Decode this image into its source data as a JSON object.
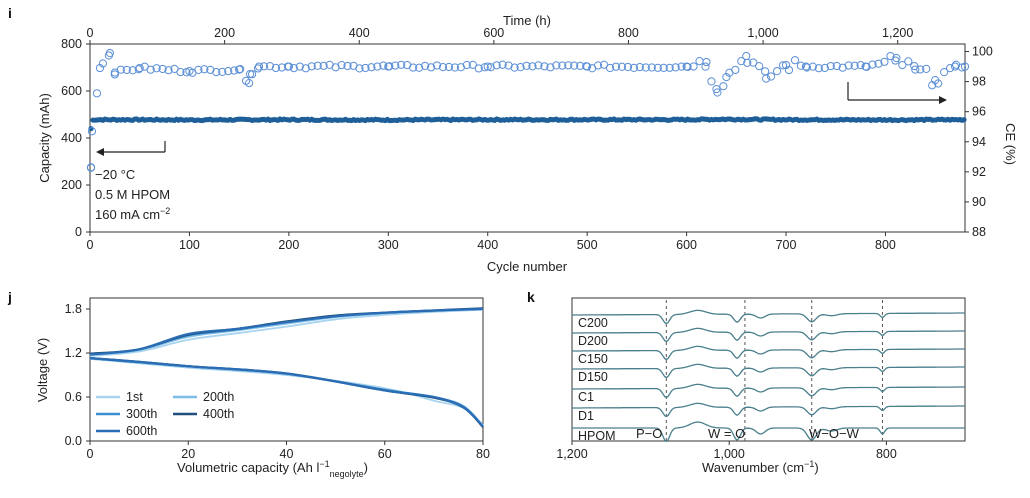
{
  "chart_data": [
    {
      "panel": "i",
      "type": "scatter",
      "x_top": {
        "label": "Time (h)",
        "ticks": [
          0,
          200,
          400,
          600,
          800,
          "1,000",
          "1,200"
        ],
        "range": [
          0,
          1300
        ]
      },
      "x_bottom": {
        "label": "Cycle number",
        "ticks": [
          0,
          100,
          200,
          300,
          400,
          500,
          600,
          700,
          800
        ],
        "range": [
          0,
          880
        ]
      },
      "y_left": {
        "label": "Capacity (mAh)",
        "ticks": [
          0,
          200,
          400,
          600,
          800
        ],
        "range": [
          0,
          800
        ]
      },
      "y_right": {
        "label": "CE (%)",
        "ticks": [
          88,
          90,
          92,
          94,
          96,
          98,
          100
        ],
        "range": [
          88,
          100.5
        ]
      },
      "annotations": [
        "−20 °C",
        "0.5 M HPOM",
        "160 mA cm−2"
      ],
      "series": [
        {
          "name": "Capacity",
          "axis": "left",
          "color": "#1f5f99",
          "marker": "filled",
          "points": [
            [
              1,
              440
            ],
            [
              2,
              475
            ],
            [
              5,
              478
            ],
            [
              50,
              478
            ],
            [
              100,
              477
            ],
            [
              200,
              478
            ],
            [
              300,
              477
            ],
            [
              400,
              478
            ],
            [
              500,
              478
            ],
            [
              600,
              478
            ],
            [
              640,
              480
            ],
            [
              700,
              478
            ],
            [
              800,
              477
            ],
            [
              880,
              478
            ]
          ]
        },
        {
          "name": "CE",
          "axis": "right",
          "color": "#5b8fd6",
          "marker": "open",
          "points": [
            [
              1,
              92.3
            ],
            [
              2,
              94.7
            ],
            [
              10,
              98.9
            ],
            [
              20,
              99.9
            ],
            [
              25,
              98.6
            ],
            [
              50,
              98.9
            ],
            [
              100,
              98.7
            ],
            [
              150,
              98.8
            ],
            [
              160,
              97.9
            ],
            [
              161,
              98.5
            ],
            [
              170,
              99.0
            ],
            [
              200,
              99.0
            ],
            [
              300,
              99.0
            ],
            [
              400,
              99.0
            ],
            [
              500,
              99.0
            ],
            [
              600,
              99.0
            ],
            [
              620,
              99.3
            ],
            [
              630,
              97.5
            ],
            [
              640,
              98.3
            ],
            [
              660,
              99.7
            ],
            [
              680,
              98.2
            ],
            [
              700,
              99.1
            ],
            [
              720,
              99.0
            ],
            [
              780,
              99.0
            ],
            [
              810,
              99.4
            ],
            [
              830,
              98.8
            ],
            [
              850,
              98.1
            ],
            [
              870,
              99.0
            ],
            [
              880,
              99.0
            ]
          ]
        }
      ]
    },
    {
      "panel": "j",
      "type": "line",
      "x": {
        "label": "Volumetric capacity (Ah l",
        "label_sup": "−1",
        "label_sub": "negolyte",
        "label_end": ")",
        "ticks": [
          0,
          20,
          40,
          60,
          80
        ],
        "range": [
          0,
          80
        ]
      },
      "y": {
        "label": "Voltage (V)",
        "ticks": [
          "0.0",
          "0.6",
          "1.2",
          "1.8"
        ],
        "range": [
          0,
          1.95
        ]
      },
      "legend": [
        "1st",
        "200th",
        "300th",
        "400th",
        "600th"
      ],
      "series": [
        {
          "name": "1st",
          "color": "#a9d4f0",
          "charge": [
            [
              0,
              1.16
            ],
            [
              10,
              1.22
            ],
            [
              20,
              1.38
            ],
            [
              30,
              1.47
            ],
            [
              40,
              1.56
            ],
            [
              50,
              1.66
            ],
            [
              60,
              1.72
            ],
            [
              70,
              1.76
            ],
            [
              80,
              1.79
            ]
          ],
          "discharge": [
            [
              0,
              1.12
            ],
            [
              10,
              1.06
            ],
            [
              20,
              1.0
            ],
            [
              40,
              0.9
            ],
            [
              60,
              0.72
            ],
            [
              70,
              0.55
            ],
            [
              76,
              0.45
            ],
            [
              80,
              0.22
            ]
          ]
        },
        {
          "name": "200th",
          "color": "#7fbde8",
          "charge": [
            [
              0,
              1.17
            ],
            [
              10,
              1.24
            ],
            [
              20,
              1.42
            ],
            [
              30,
              1.51
            ],
            [
              40,
              1.6
            ],
            [
              50,
              1.69
            ],
            [
              60,
              1.74
            ],
            [
              70,
              1.77
            ],
            [
              80,
              1.8
            ]
          ],
          "discharge": [
            [
              0,
              1.12
            ],
            [
              10,
              1.07
            ],
            [
              20,
              1.01
            ],
            [
              40,
              0.91
            ],
            [
              60,
              0.7
            ],
            [
              70,
              0.6
            ],
            [
              76,
              0.48
            ],
            [
              80,
              0.21
            ]
          ]
        },
        {
          "name": "300th",
          "color": "#3a8fd0",
          "charge": [
            [
              0,
              1.18
            ],
            [
              10,
              1.25
            ],
            [
              20,
              1.44
            ],
            [
              30,
              1.52
            ],
            [
              40,
              1.62
            ],
            [
              50,
              1.7
            ],
            [
              60,
              1.75
            ],
            [
              70,
              1.78
            ],
            [
              80,
              1.8
            ]
          ],
          "discharge": [
            [
              0,
              1.13
            ],
            [
              10,
              1.07
            ],
            [
              20,
              1.02
            ],
            [
              40,
              0.92
            ],
            [
              60,
              0.7
            ],
            [
              70,
              0.6
            ],
            [
              76,
              0.47
            ],
            [
              80,
              0.2
            ]
          ]
        },
        {
          "name": "400th",
          "color": "#1f4f7a",
          "charge": [
            [
              0,
              1.19
            ],
            [
              10,
              1.25
            ],
            [
              20,
              1.45
            ],
            [
              30,
              1.53
            ],
            [
              40,
              1.63
            ],
            [
              50,
              1.71
            ],
            [
              60,
              1.75
            ],
            [
              70,
              1.78
            ],
            [
              80,
              1.81
            ]
          ],
          "discharge": [
            [
              0,
              1.13
            ],
            [
              10,
              1.08
            ],
            [
              20,
              1.02
            ],
            [
              40,
              0.92
            ],
            [
              60,
              0.69
            ],
            [
              70,
              0.59
            ],
            [
              76,
              0.46
            ],
            [
              80,
              0.19
            ]
          ]
        },
        {
          "name": "600th",
          "color": "#2a6db5",
          "charge": [
            [
              0,
              1.18
            ],
            [
              10,
              1.25
            ],
            [
              20,
              1.46
            ],
            [
              30,
              1.53
            ],
            [
              40,
              1.62
            ],
            [
              50,
              1.7
            ],
            [
              60,
              1.75
            ],
            [
              70,
              1.78
            ],
            [
              80,
              1.8
            ]
          ],
          "discharge": [
            [
              0,
              1.13
            ],
            [
              10,
              1.08
            ],
            [
              20,
              1.02
            ],
            [
              40,
              0.92
            ],
            [
              60,
              0.69
            ],
            [
              70,
              0.6
            ],
            [
              76,
              0.46
            ],
            [
              80,
              0.2
            ]
          ]
        }
      ]
    },
    {
      "panel": "k",
      "type": "line",
      "x": {
        "label": "Wavenumber (cm",
        "label_sup": "−1",
        "label_end": ")",
        "ticks": [
          "1,200",
          "1,000",
          "800"
        ],
        "tick_values": [
          1200,
          1000,
          800
        ],
        "range": [
          1200,
          700
        ]
      },
      "series_labels": [
        "C200",
        "D200",
        "C150",
        "D150",
        "C1",
        "D1",
        "HPOM"
      ],
      "band_labels": [
        "P−O",
        "W = O",
        "W−O−W"
      ],
      "band_positions": [
        1080,
        980,
        895,
        805
      ],
      "color": "#4a7f8c"
    }
  ]
}
